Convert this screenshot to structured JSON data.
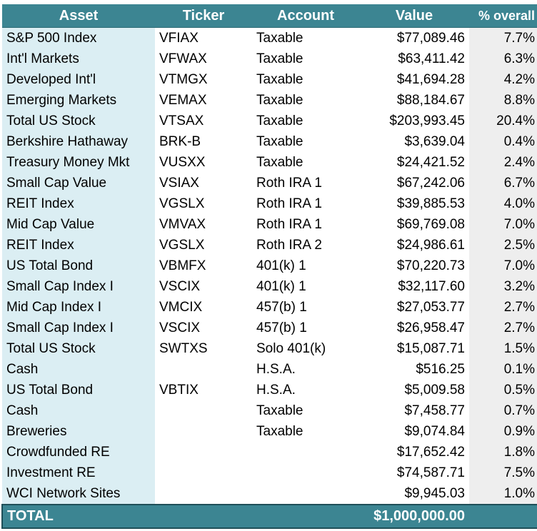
{
  "headers": {
    "asset": "Asset",
    "ticker": "Ticker",
    "account": "Account",
    "value": "Value",
    "pct": "% overall"
  },
  "rows": [
    {
      "asset": "S&P 500 Index",
      "ticker": "VFIAX",
      "account": "Taxable",
      "value": "$77,089.46",
      "pct": "7.7%"
    },
    {
      "asset": "Int'l Markets",
      "ticker": "VFWAX",
      "account": "Taxable",
      "value": "$63,411.42",
      "pct": "6.3%"
    },
    {
      "asset": "Developed Int'l",
      "ticker": "VTMGX",
      "account": "Taxable",
      "value": "$41,694.28",
      "pct": "4.2%"
    },
    {
      "asset": "Emerging Markets",
      "ticker": "VEMAX",
      "account": "Taxable",
      "value": "$88,184.67",
      "pct": "8.8%"
    },
    {
      "asset": "Total US Stock",
      "ticker": "VTSAX",
      "account": "Taxable",
      "value": "$203,993.45",
      "pct": "20.4%"
    },
    {
      "asset": "Berkshire Hathaway",
      "ticker": "BRK-B",
      "account": "Taxable",
      "value": "$3,639.04",
      "pct": "0.4%"
    },
    {
      "asset": "Treasury Money Mkt",
      "ticker": "VUSXX",
      "account": "Taxable",
      "value": "$24,421.52",
      "pct": "2.4%"
    },
    {
      "asset": "Small Cap Value",
      "ticker": "VSIAX",
      "account": "Roth IRA 1",
      "value": "$67,242.06",
      "pct": "6.7%"
    },
    {
      "asset": "REIT Index",
      "ticker": "VGSLX",
      "account": "Roth IRA 1",
      "value": "$39,885.53",
      "pct": "4.0%"
    },
    {
      "asset": "Mid Cap Value",
      "ticker": "VMVAX",
      "account": "Roth IRA 1",
      "value": "$69,769.08",
      "pct": "7.0%"
    },
    {
      "asset": "REIT Index",
      "ticker": "VGSLX",
      "account": "Roth IRA 2",
      "value": "$24,986.61",
      "pct": "2.5%"
    },
    {
      "asset": "US Total Bond",
      "ticker": "VBMFX",
      "account": "401(k) 1",
      "value": "$70,220.73",
      "pct": "7.0%"
    },
    {
      "asset": "Small Cap Index I",
      "ticker": "VSCIX",
      "account": "401(k) 1",
      "value": "$32,117.60",
      "pct": "3.2%"
    },
    {
      "asset": "Mid Cap Index I",
      "ticker": "VMCIX",
      "account": "457(b) 1",
      "value": "$27,053.77",
      "pct": "2.7%"
    },
    {
      "asset": "Small Cap Index I",
      "ticker": "VSCIX",
      "account": "457(b) 1",
      "value": "$26,958.47",
      "pct": "2.7%"
    },
    {
      "asset": "Total US Stock",
      "ticker": "SWTXS",
      "account": "Solo 401(k)",
      "value": "$15,087.71",
      "pct": "1.5%"
    },
    {
      "asset": "Cash",
      "ticker": "",
      "account": "H.S.A.",
      "value": "$516.25",
      "pct": "0.1%"
    },
    {
      "asset": "US Total Bond",
      "ticker": "VBTIX",
      "account": "H.S.A.",
      "value": "$5,009.58",
      "pct": "0.5%"
    },
    {
      "asset": "Cash",
      "ticker": "",
      "account": "Taxable",
      "value": "$7,458.77",
      "pct": "0.7%"
    },
    {
      "asset": "Breweries",
      "ticker": "",
      "account": "Taxable",
      "value": "$9,074.84",
      "pct": "0.9%"
    },
    {
      "asset": "Crowdfunded RE",
      "ticker": "",
      "account": "",
      "value": "$17,652.42",
      "pct": "1.8%"
    },
    {
      "asset": "Investment RE",
      "ticker": "",
      "account": "",
      "value": "$74,587.71",
      "pct": "7.5%"
    },
    {
      "asset": "WCI Network Sites",
      "ticker": "",
      "account": "",
      "value": "$9,945.03",
      "pct": "1.0%"
    }
  ],
  "total": {
    "label": "TOTAL",
    "value": "$1,000,000.00"
  },
  "colors": {
    "header_bg": "#3c8592",
    "asset_column_bg": "#dbeef3",
    "pct_column_bg": "#eeeeee",
    "total_border": "#1f4f58"
  }
}
